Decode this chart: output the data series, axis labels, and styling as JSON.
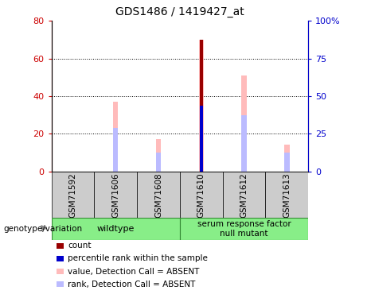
{
  "title": "GDS1486 / 1419427_at",
  "samples": [
    "GSM71592",
    "GSM71606",
    "GSM71608",
    "GSM71610",
    "GSM71612",
    "GSM71613"
  ],
  "value_absent": [
    0,
    37,
    17,
    70,
    51,
    14
  ],
  "rank_absent": [
    0,
    23,
    10,
    0,
    30,
    10
  ],
  "count_value": [
    0,
    0,
    0,
    70,
    0,
    0
  ],
  "percentile_rank_left": [
    0,
    0,
    0,
    35,
    0,
    0
  ],
  "ylim_left": [
    0,
    80
  ],
  "ylim_right": [
    0,
    100
  ],
  "yticks_left": [
    0,
    20,
    40,
    60,
    80
  ],
  "yticks_right": [
    0,
    25,
    50,
    75,
    100
  ],
  "yticklabels_left": [
    "0",
    "20",
    "40",
    "60",
    "80"
  ],
  "yticklabels_right": [
    "0",
    "25",
    "50",
    "75",
    "100%"
  ],
  "left_tick_color": "#cc0000",
  "right_tick_color": "#0000cc",
  "color_count": "#990000",
  "color_percentile": "#0000cc",
  "color_value_absent": "#ffbbbb",
  "color_rank_absent": "#bbbbff",
  "wildtype_label": "wildtype",
  "mutant_label": "serum response factor\nnull mutant",
  "genotype_label": "genotype/variation",
  "legend_items": [
    {
      "label": "count",
      "color": "#990000"
    },
    {
      "label": "percentile rank within the sample",
      "color": "#0000cc"
    },
    {
      "label": "value, Detection Call = ABSENT",
      "color": "#ffbbbb"
    },
    {
      "label": "rank, Detection Call = ABSENT",
      "color": "#bbbbff"
    }
  ],
  "thin_bar_width": 0.12,
  "wide_bar_width": 0.28,
  "group_bg_color": "#cccccc",
  "genotype_bg_color": "#88ee88",
  "grid_color": "#000000"
}
